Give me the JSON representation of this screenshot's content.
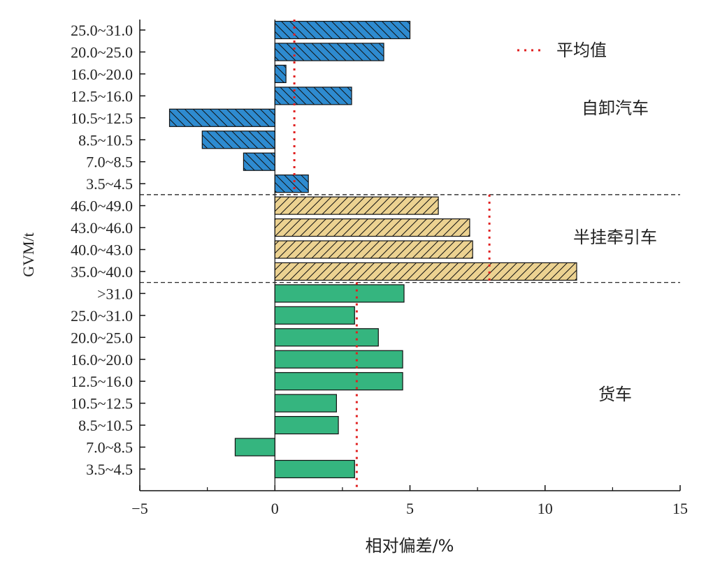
{
  "chart_data": {
    "type": "bar",
    "orientation": "horizontal",
    "xlabel": "相对偏差/%",
    "ylabel": "GVM/t",
    "xlim": [
      -5,
      15
    ],
    "xticks": [
      "−5",
      "0",
      "5",
      "10",
      "15"
    ],
    "xtick_values": [
      -5,
      0,
      5,
      10,
      15
    ],
    "legend": {
      "label": "平均值",
      "placement": "top-right",
      "style": "red dotted line"
    },
    "groups": [
      {
        "name": "自卸汽车",
        "color": "#2e8bd0",
        "hatch": "backslash",
        "mean": 0.72,
        "categories": [
          "25.0~31.0",
          "20.0~25.0",
          "16.0~20.0",
          "12.5~16.0",
          "10.5~12.5",
          "8.5~10.5",
          "7.0~8.5",
          "3.5~4.5"
        ],
        "values": [
          5.0,
          4.03,
          0.41,
          2.84,
          -3.9,
          -2.69,
          -1.16,
          1.24
        ]
      },
      {
        "name": "半挂牵引车",
        "color": "#ecd291",
        "hatch": "slash",
        "mean": 7.94,
        "categories": [
          "46.0~49.0",
          "43.0~46.0",
          "40.0~43.0",
          "35.0~40.0"
        ],
        "values": [
          6.05,
          7.21,
          7.32,
          11.17
        ]
      },
      {
        "name": "货车",
        "color": "#35b57f",
        "hatch": "none",
        "mean": 3.03,
        "categories": [
          ">31.0",
          "25.0~31.0",
          "20.0~25.0",
          "16.0~20.0",
          "12.5~16.0",
          "10.5~12.5",
          "8.5~10.5",
          "7.0~8.5",
          "3.5~4.5"
        ],
        "values": [
          4.78,
          2.95,
          3.83,
          4.73,
          4.73,
          2.28,
          2.35,
          -1.47,
          2.95
        ]
      }
    ]
  }
}
